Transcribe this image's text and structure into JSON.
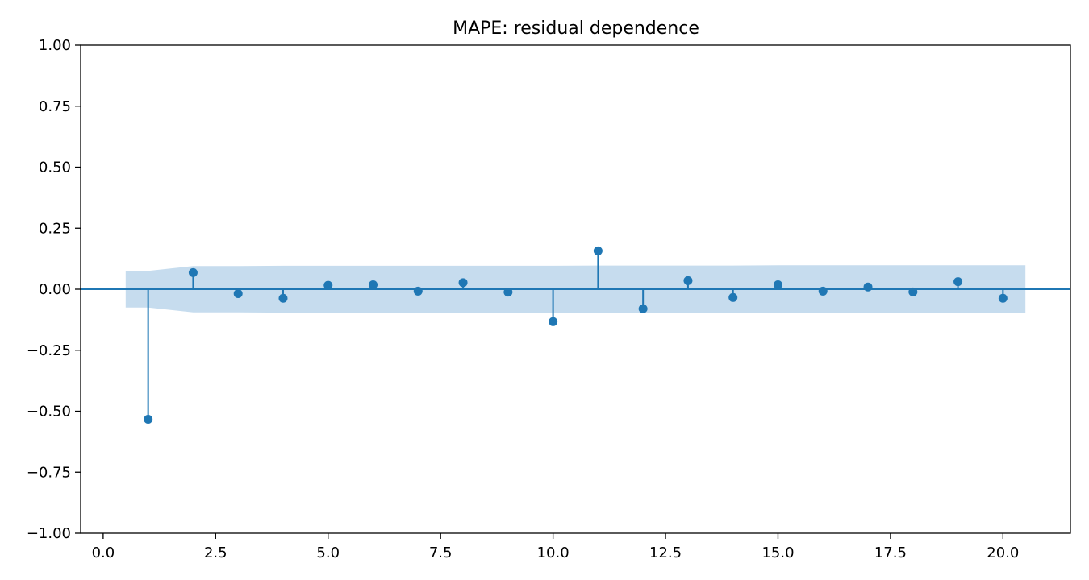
{
  "chart_data": {
    "type": "stem",
    "title": "MAPE: residual dependence",
    "xlabel": "",
    "ylabel": "",
    "xlim": [
      -0.5,
      21.5
    ],
    "ylim": [
      -1.0,
      1.0
    ],
    "x_ticks": [
      0.0,
      2.5,
      5.0,
      7.5,
      10.0,
      12.5,
      15.0,
      17.5,
      20.0
    ],
    "x_tick_labels": [
      "0.0",
      "2.5",
      "5.0",
      "7.5",
      "10.0",
      "12.5",
      "15.0",
      "17.5",
      "20.0"
    ],
    "y_ticks": [
      1.0,
      0.75,
      0.5,
      0.25,
      0.0,
      -0.25,
      -0.5,
      -0.75,
      -1.0
    ],
    "y_tick_labels": [
      "1.00",
      "0.75",
      "0.50",
      "0.25",
      "0.00",
      "−0.25",
      "−0.50",
      "−0.75",
      "−1.00"
    ],
    "grid": false,
    "colors": {
      "stem": "#1f77b4",
      "band": "#c6dcee",
      "axis": "#000000"
    },
    "lags": [
      1,
      2,
      3,
      4,
      5,
      6,
      7,
      8,
      9,
      10,
      11,
      12,
      13,
      14,
      15,
      16,
      17,
      18,
      19,
      20
    ],
    "values": [
      -0.533,
      0.068,
      -0.018,
      -0.037,
      0.016,
      0.018,
      -0.008,
      0.027,
      -0.012,
      -0.133,
      0.157,
      -0.08,
      0.035,
      -0.034,
      0.018,
      -0.008,
      0.009,
      -0.011,
      0.031,
      -0.037
    ],
    "confidence_band": {
      "x": [
        0.5,
        1,
        2,
        3,
        4,
        5,
        6,
        7,
        8,
        9,
        10,
        11,
        12,
        13,
        14,
        15,
        16,
        17,
        18,
        19,
        20,
        20.5
      ],
      "upper": [
        0.075,
        0.075,
        0.095,
        0.095,
        0.096,
        0.096,
        0.096,
        0.096,
        0.096,
        0.096,
        0.096,
        0.097,
        0.097,
        0.097,
        0.097,
        0.098,
        0.098,
        0.098,
        0.098,
        0.098,
        0.098,
        0.098
      ]
    }
  }
}
